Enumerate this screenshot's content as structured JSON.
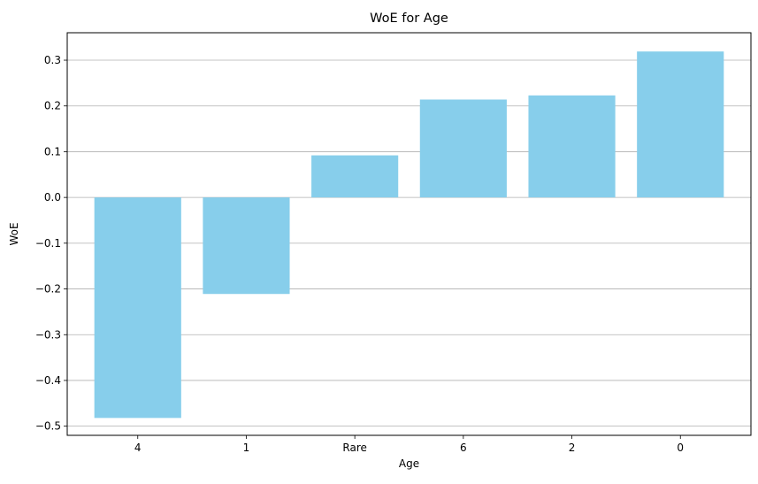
{
  "chart_data": {
    "type": "bar",
    "title": "WoE for Age",
    "xlabel": "Age",
    "ylabel": "WoE",
    "categories": [
      "4",
      "1",
      "Rare",
      "6",
      "2",
      "0"
    ],
    "values": [
      -0.482,
      -0.211,
      0.092,
      0.214,
      0.223,
      0.319
    ],
    "ylim": [
      -0.52,
      0.36
    ],
    "yticks": [
      -0.5,
      -0.4,
      -0.3,
      -0.2,
      -0.1,
      0.0,
      0.1,
      0.2,
      0.3
    ],
    "ytick_labels": [
      "−0.5",
      "−0.4",
      "−0.3",
      "−0.2",
      "−0.1",
      "0.0",
      "0.1",
      "0.2",
      "0.3"
    ],
    "grid": "horizontal",
    "bar_color": "#87ceeb",
    "grid_color": "#b0b0b0"
  }
}
